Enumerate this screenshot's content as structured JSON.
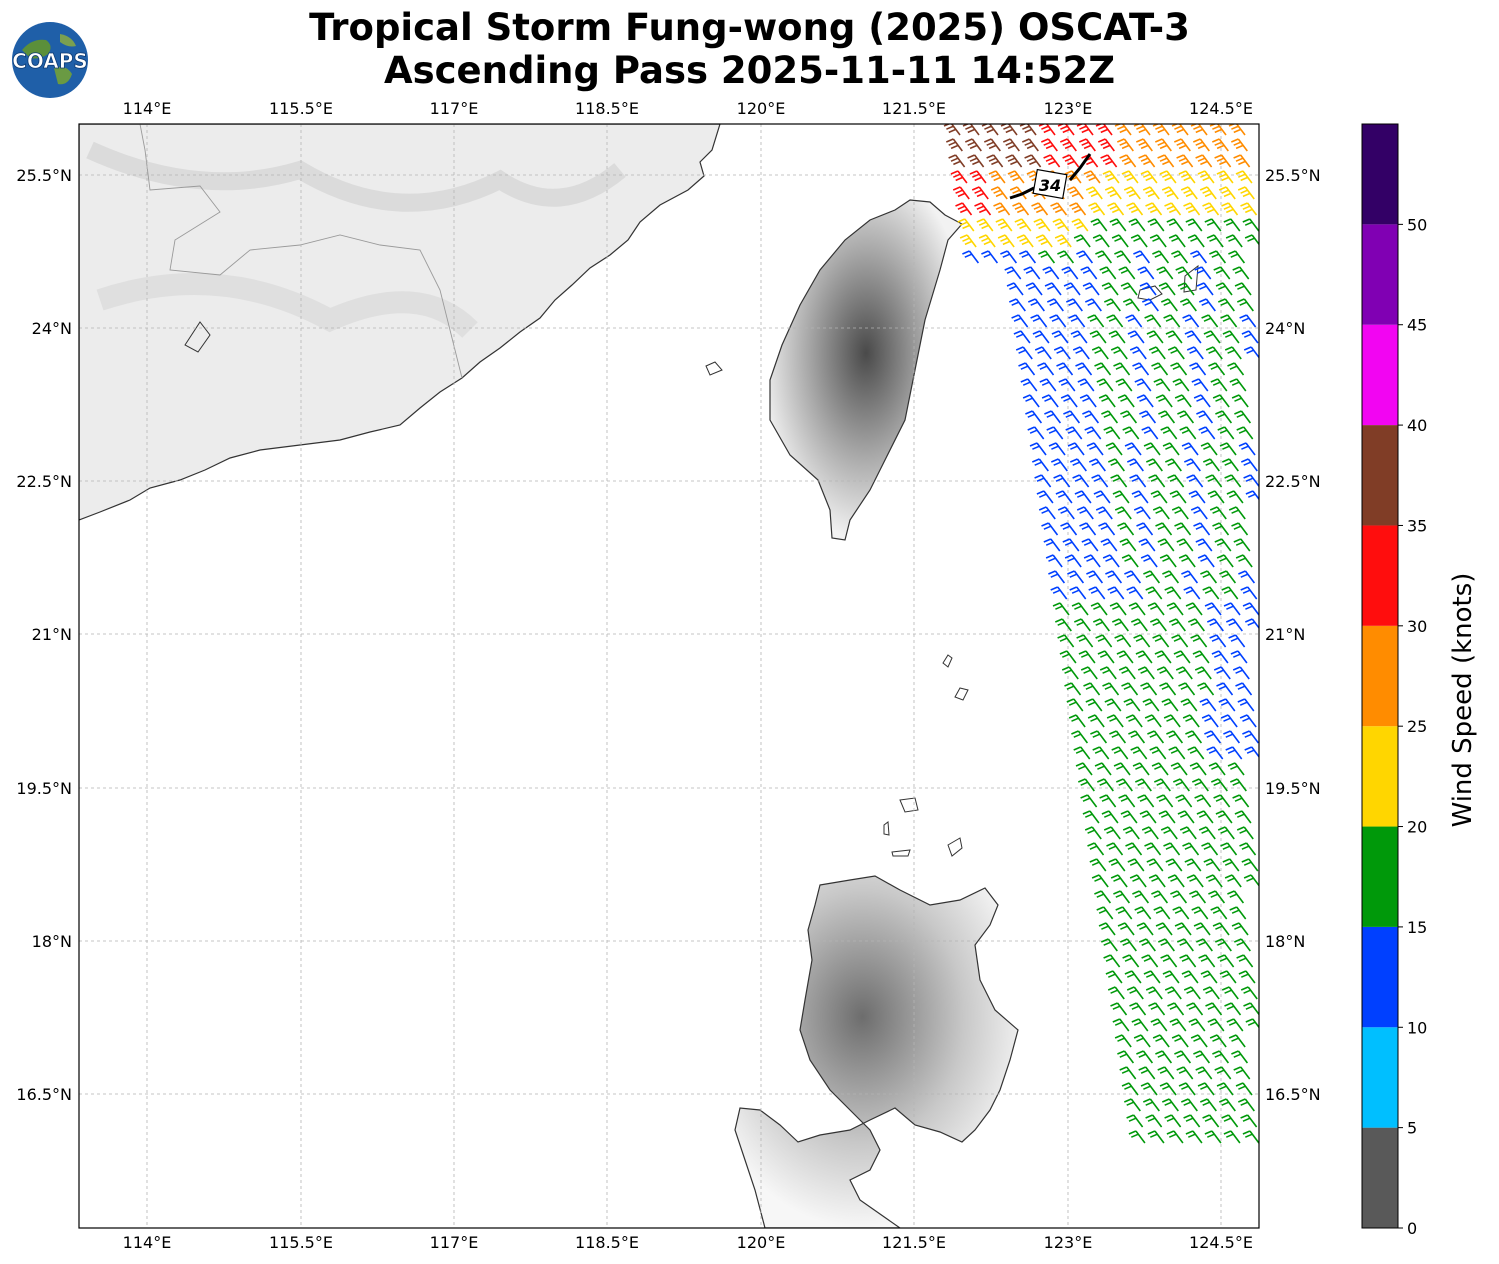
{
  "header": {
    "title_line1": "Tropical Storm Fung-wong (2025) OSCAT-3",
    "title_line2": "Ascending Pass 2025-11-11 14:52Z"
  },
  "logo": {
    "text": "COAPS"
  },
  "axes": {
    "lon_ticks": [
      "114°E",
      "115.5°E",
      "117°E",
      "118.5°E",
      "120°E",
      "121.5°E",
      "123°E",
      "124.5°E"
    ],
    "lat_ticks": [
      "25.5°N",
      "24°N",
      "22.5°N",
      "21°N",
      "19.5°N",
      "18°N",
      "16.5°N"
    ],
    "lon_range": [
      113.33,
      124.87
    ],
    "lat_range": [
      15.2,
      26.0
    ]
  },
  "annotation": {
    "contour_label": "34"
  },
  "colorbar": {
    "label": "Wind Speed (knots)",
    "ticks": [
      "0",
      "5",
      "10",
      "15",
      "20",
      "25",
      "30",
      "35",
      "40",
      "45",
      "50"
    ],
    "bins": [
      {
        "range": [
          0,
          5
        ],
        "color": "#595959"
      },
      {
        "range": [
          5,
          10
        ],
        "color": "#00bfff"
      },
      {
        "range": [
          10,
          15
        ],
        "color": "#0040ff"
      },
      {
        "range": [
          15,
          20
        ],
        "color": "#00990a"
      },
      {
        "range": [
          20,
          25
        ],
        "color": "#ffd600"
      },
      {
        "range": [
          25,
          30
        ],
        "color": "#ff8c00"
      },
      {
        "range": [
          30,
          35
        ],
        "color": "#ff0d0d"
      },
      {
        "range": [
          35,
          40
        ],
        "color": "#803d26"
      },
      {
        "range": [
          40,
          45
        ],
        "color": "#f205f2"
      },
      {
        "range": [
          45,
          50
        ],
        "color": "#8000b3"
      },
      {
        "range": [
          50,
          55
        ],
        "color": "#330066"
      }
    ]
  }
}
